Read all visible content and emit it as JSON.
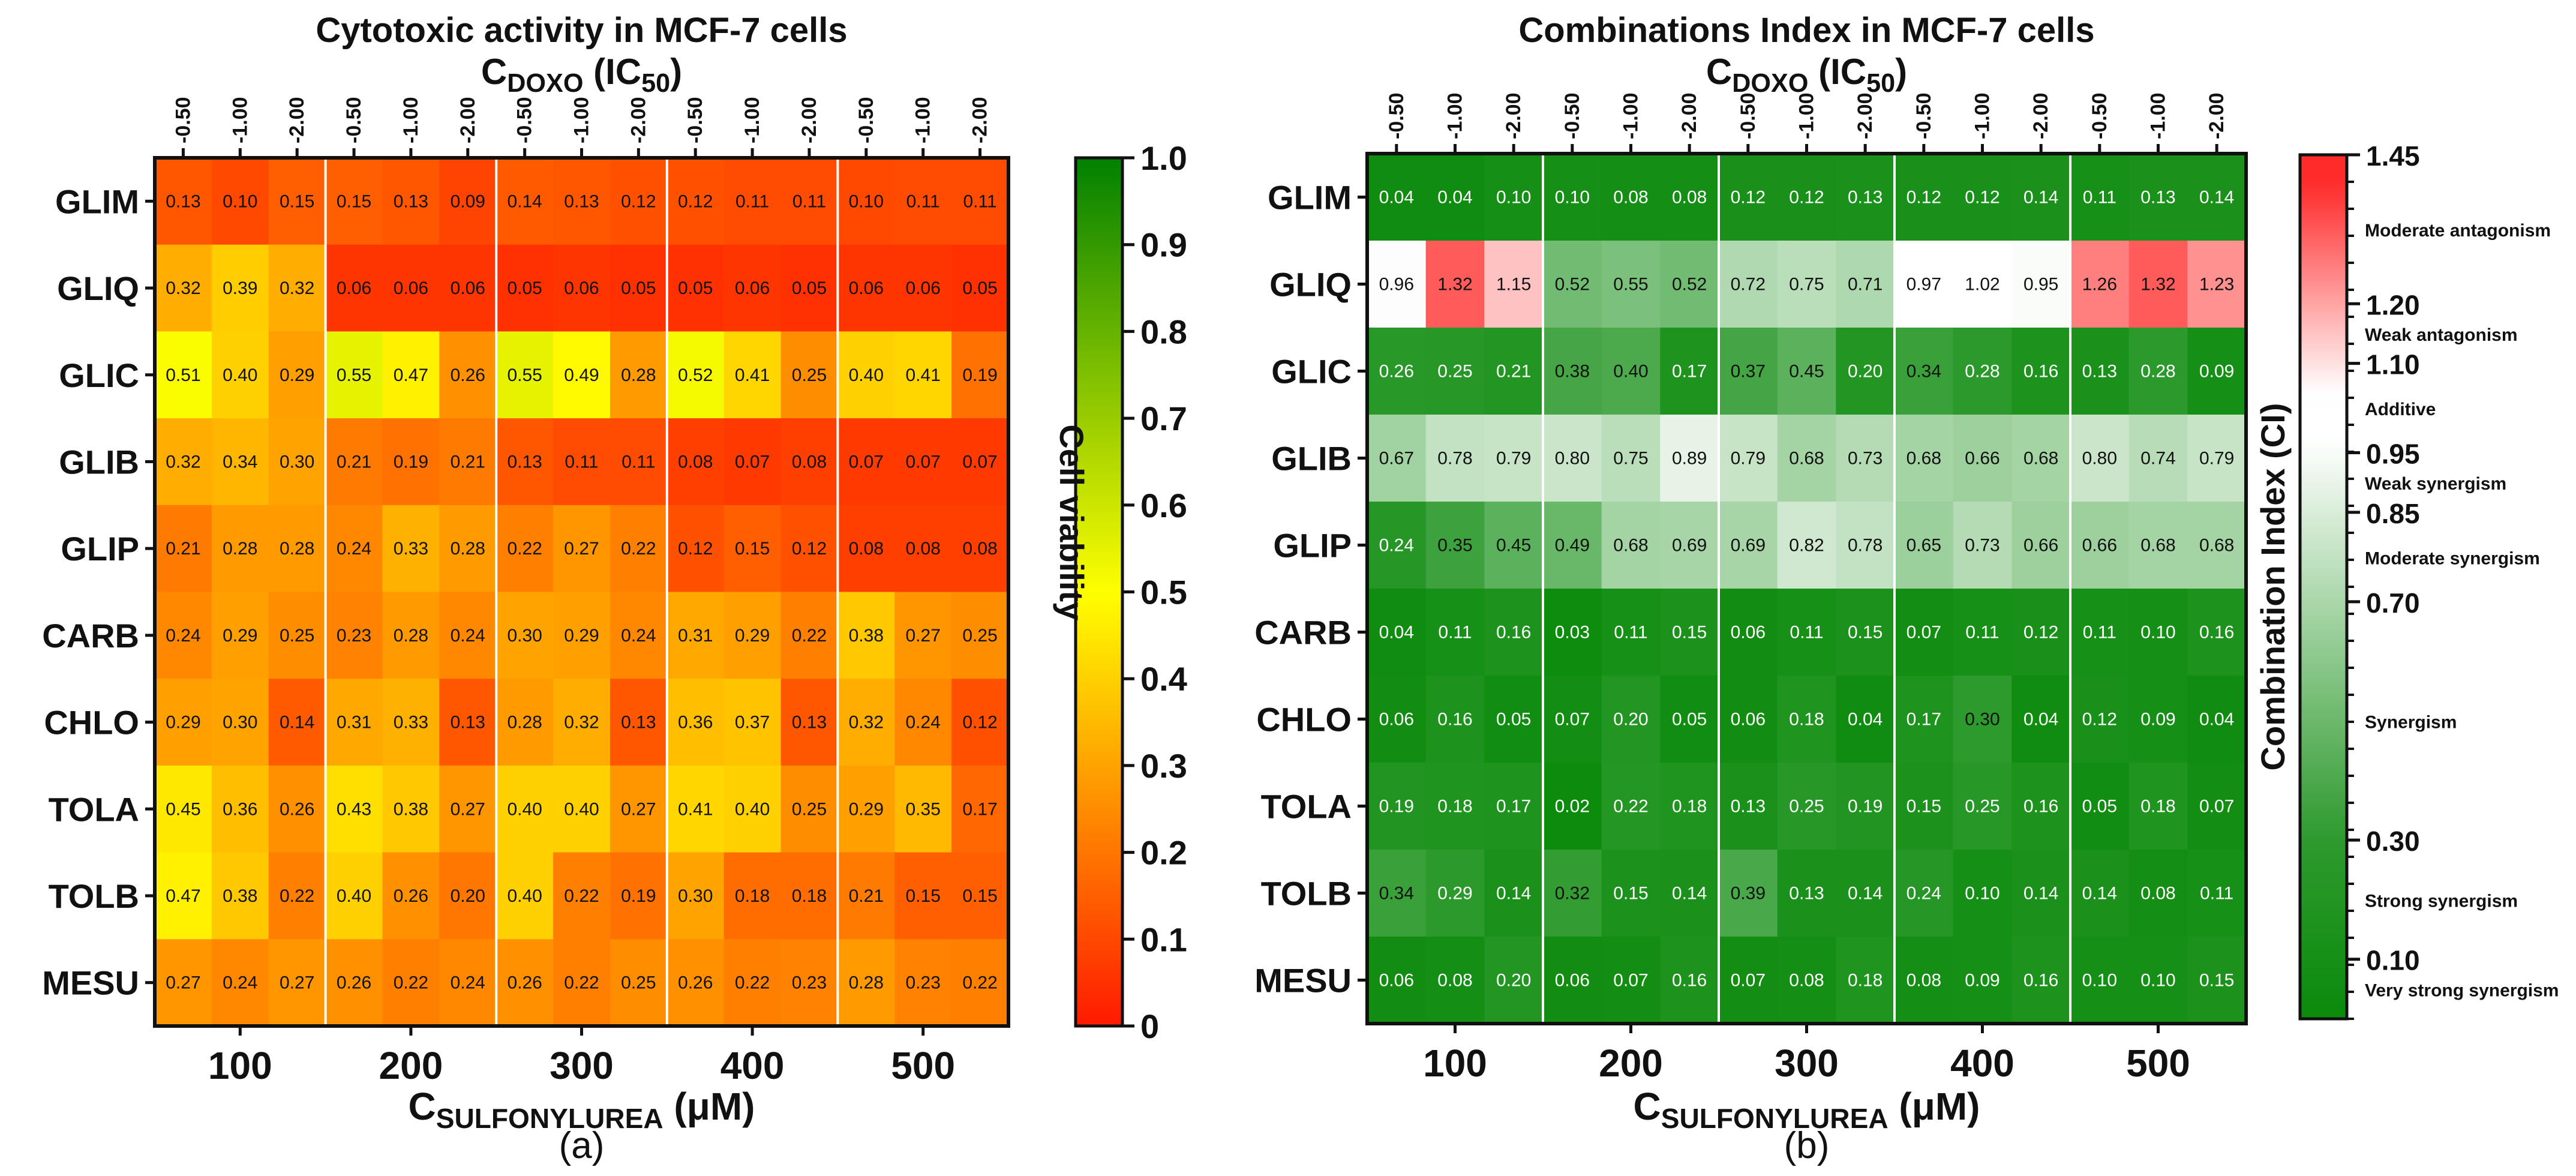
{
  "chart_data": [
    {
      "type": "heatmap",
      "panel_label": "(a)",
      "title": "Cytotoxic activity in MCF-7 cells",
      "top_axis_label": {
        "main": "C",
        "sub": "DOXO",
        "rest": " (IC",
        "sub2": "50",
        "close": ")"
      },
      "bottom_axis_label": {
        "main": "C",
        "sub": "SULFONYLUREA",
        "rest": " (μM)"
      },
      "x_groups": [
        "100",
        "200",
        "300",
        "400",
        "500"
      ],
      "x_sub": [
        "-0.50",
        "-1.00",
        "-2.00"
      ],
      "rows": [
        "GLIM",
        "GLIQ",
        "GLIC",
        "GLIB",
        "GLIP",
        "CARB",
        "CHLO",
        "TOLA",
        "TOLB",
        "MESU"
      ],
      "values": [
        [
          0.13,
          0.1,
          0.15,
          0.15,
          0.13,
          0.09,
          0.14,
          0.13,
          0.12,
          0.12,
          0.11,
          0.11,
          0.1,
          0.11,
          0.11
        ],
        [
          0.32,
          0.39,
          0.32,
          0.06,
          0.06,
          0.06,
          0.05,
          0.06,
          0.05,
          0.05,
          0.06,
          0.05,
          0.06,
          0.06,
          0.05
        ],
        [
          0.51,
          0.4,
          0.29,
          0.55,
          0.47,
          0.26,
          0.55,
          0.49,
          0.28,
          0.52,
          0.41,
          0.25,
          0.4,
          0.41,
          0.19
        ],
        [
          0.32,
          0.34,
          0.3,
          0.21,
          0.19,
          0.21,
          0.13,
          0.11,
          0.11,
          0.08,
          0.07,
          0.08,
          0.07,
          0.07,
          0.07
        ],
        [
          0.21,
          0.28,
          0.28,
          0.24,
          0.33,
          0.28,
          0.22,
          0.27,
          0.22,
          0.12,
          0.15,
          0.12,
          0.08,
          0.08,
          0.08
        ],
        [
          0.24,
          0.29,
          0.25,
          0.23,
          0.28,
          0.24,
          0.3,
          0.29,
          0.24,
          0.31,
          0.29,
          0.22,
          0.38,
          0.27,
          0.25
        ],
        [
          0.29,
          0.3,
          0.14,
          0.31,
          0.33,
          0.13,
          0.28,
          0.32,
          0.13,
          0.36,
          0.37,
          0.13,
          0.32,
          0.24,
          0.12
        ],
        [
          0.45,
          0.36,
          0.26,
          0.43,
          0.38,
          0.27,
          0.4,
          0.4,
          0.27,
          0.41,
          0.4,
          0.25,
          0.29,
          0.35,
          0.17
        ],
        [
          0.47,
          0.38,
          0.22,
          0.4,
          0.26,
          0.2,
          0.4,
          0.22,
          0.19,
          0.3,
          0.18,
          0.18,
          0.21,
          0.15,
          0.15
        ],
        [
          0.27,
          0.24,
          0.27,
          0.26,
          0.22,
          0.24,
          0.26,
          0.22,
          0.25,
          0.26,
          0.22,
          0.23,
          0.28,
          0.23,
          0.22
        ]
      ],
      "colorbar": {
        "label": "Cell viability",
        "range": [
          0,
          1.0
        ],
        "ticks": [
          "0",
          "0.1",
          "0.2",
          "0.3",
          "0.4",
          "0.5",
          "0.6",
          "0.7",
          "0.8",
          "0.9",
          "1.0"
        ],
        "colors": {
          "low": "#ff1a00",
          "mid": "#ffff00",
          "high": "#008000"
        }
      }
    },
    {
      "type": "heatmap",
      "panel_label": "(b)",
      "title": "Combinations Index in MCF-7 cells",
      "top_axis_label": {
        "main": "C",
        "sub": "DOXO",
        "rest": " (IC",
        "sub2": "50",
        "close": ")"
      },
      "bottom_axis_label": {
        "main": "C",
        "sub": "SULFONYLUREA",
        "rest": " (μM)"
      },
      "x_groups": [
        "100",
        "200",
        "300",
        "400",
        "500"
      ],
      "x_sub": [
        "-0.50",
        "-1.00",
        "-2.00"
      ],
      "rows": [
        "GLIM",
        "GLIQ",
        "GLIC",
        "GLIB",
        "GLIP",
        "CARB",
        "CHLO",
        "TOLA",
        "TOLB",
        "MESU"
      ],
      "values": [
        [
          0.04,
          0.04,
          0.1,
          0.1,
          0.08,
          0.08,
          0.12,
          0.12,
          0.13,
          0.12,
          0.12,
          0.14,
          0.11,
          0.13,
          0.14
        ],
        [
          0.96,
          1.32,
          1.15,
          0.52,
          0.55,
          0.52,
          0.72,
          0.75,
          0.71,
          0.97,
          1.02,
          0.95,
          1.26,
          1.32,
          1.23
        ],
        [
          0.26,
          0.25,
          0.21,
          0.38,
          0.4,
          0.17,
          0.37,
          0.45,
          0.2,
          0.34,
          0.28,
          0.16,
          0.13,
          0.28,
          0.09
        ],
        [
          0.67,
          0.78,
          0.79,
          0.8,
          0.75,
          0.89,
          0.79,
          0.68,
          0.73,
          0.68,
          0.66,
          0.68,
          0.8,
          0.74,
          0.79
        ],
        [
          0.24,
          0.35,
          0.45,
          0.49,
          0.68,
          0.69,
          0.69,
          0.82,
          0.78,
          0.65,
          0.73,
          0.66,
          0.66,
          0.68,
          0.68
        ],
        [
          0.04,
          0.11,
          0.16,
          0.03,
          0.11,
          0.15,
          0.06,
          0.11,
          0.15,
          0.07,
          0.11,
          0.12,
          0.11,
          0.1,
          0.16
        ],
        [
          0.06,
          0.16,
          0.05,
          0.07,
          0.2,
          0.05,
          0.06,
          0.18,
          0.04,
          0.17,
          0.3,
          0.04,
          0.12,
          0.09,
          0.04
        ],
        [
          0.19,
          0.18,
          0.17,
          0.02,
          0.22,
          0.18,
          0.13,
          0.25,
          0.19,
          0.15,
          0.25,
          0.16,
          0.05,
          0.18,
          0.07
        ],
        [
          0.34,
          0.29,
          0.14,
          0.32,
          0.15,
          0.14,
          0.39,
          0.13,
          0.14,
          0.24,
          0.1,
          0.14,
          0.14,
          0.08,
          0.11
        ],
        [
          0.06,
          0.08,
          0.2,
          0.06,
          0.07,
          0.16,
          0.07,
          0.08,
          0.18,
          0.08,
          0.09,
          0.16,
          0.1,
          0.1,
          0.15
        ]
      ],
      "colorbar": {
        "label": "Combination Index (CI)",
        "range": [
          0,
          1.45
        ],
        "ticks": [
          {
            "value": 1.45,
            "label": "1.45"
          },
          {
            "value": 1.2,
            "label": "1.20"
          },
          {
            "value": 1.1,
            "label": "1.10"
          },
          {
            "value": 0.95,
            "label": "0.95"
          },
          {
            "value": 0.85,
            "label": "0.85"
          },
          {
            "value": 0.7,
            "label": "0.70"
          },
          {
            "value": 0.3,
            "label": "0.30"
          },
          {
            "value": 0.1,
            "label": "0.10"
          }
        ],
        "annotations": [
          {
            "value": 1.325,
            "label": "Moderate antagonism"
          },
          {
            "value": 1.15,
            "label": "Weak antagonism"
          },
          {
            "value": 1.025,
            "label": "Additive"
          },
          {
            "value": 0.9,
            "label": "Weak synergism"
          },
          {
            "value": 0.775,
            "label": "Moderate synergism"
          },
          {
            "value": 0.5,
            "label": "Synergism"
          },
          {
            "value": 0.2,
            "label": "Strong synergism"
          },
          {
            "value": 0.05,
            "label": "Very strong synergism"
          }
        ],
        "colors": {
          "low": "#0b8a0b",
          "mid_low": "#2d9a2d",
          "white": "#ffffff",
          "high": "#ff2a2a"
        }
      }
    }
  ]
}
